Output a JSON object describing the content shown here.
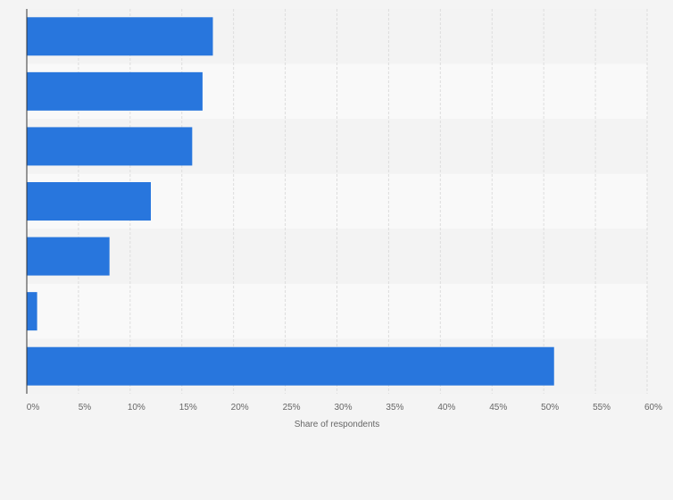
{
  "chart_data": {
    "type": "bar",
    "orientation": "horizontal",
    "categories": [
      "",
      "",
      "",
      "",
      "",
      "",
      ""
    ],
    "values": [
      18,
      17,
      16,
      12,
      8,
      1,
      51
    ],
    "xlabel": "Share of respondents",
    "ylabel": "",
    "xlim": [
      0,
      60
    ],
    "xticks": [
      "0%",
      "5%",
      "10%",
      "15%",
      "20%",
      "25%",
      "30%",
      "35%",
      "40%",
      "45%",
      "50%",
      "55%",
      "60%"
    ],
    "grid": true,
    "legend": "none",
    "colors": {
      "bar": "#2876dd",
      "band_light": "#f9f9f9",
      "band_dark": "#f3f3f3",
      "grid": "#dddddd",
      "axis": "#333333",
      "background": "#f4f4f4"
    }
  }
}
